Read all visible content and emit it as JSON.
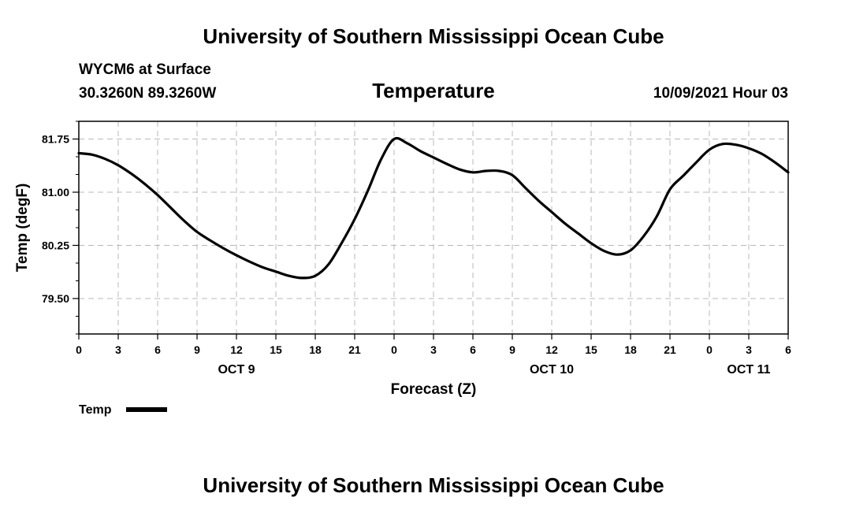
{
  "header": {
    "banner_top": "University of Southern Mississippi Ocean Cube",
    "banner_bottom": "University of Southern Mississippi Ocean Cube",
    "station": "WYCM6 at Surface",
    "coords": "30.3260N  89.3260W",
    "datetime": "10/09/2021 Hour 03"
  },
  "chart_data": {
    "type": "line",
    "title": "Temperature",
    "xlabel": "Forecast (Z)",
    "ylabel": "Temp (degF)",
    "xlim": [
      0,
      54
    ],
    "ylim": [
      79.0,
      82.0
    ],
    "x_ticks": [
      0,
      3,
      6,
      9,
      12,
      15,
      18,
      21,
      24,
      27,
      30,
      33,
      36,
      39,
      42,
      45,
      48,
      51,
      54
    ],
    "x_tick_labels": [
      "0",
      "3",
      "6",
      "9",
      "12",
      "15",
      "18",
      "21",
      "0",
      "3",
      "6",
      "9",
      "12",
      "15",
      "18",
      "21",
      "0",
      "3",
      "6"
    ],
    "y_ticks": [
      79.5,
      80.25,
      81.0,
      81.75
    ],
    "y_tick_labels": [
      "79.50",
      "80.25",
      "81.00",
      "81.75"
    ],
    "day_labels": [
      {
        "label": "OCT 9",
        "x": 12
      },
      {
        "label": "OCT 10",
        "x": 36
      },
      {
        "label": "OCT 11",
        "x": 51
      }
    ],
    "grid": true,
    "legend_placement": "bottom-left",
    "series": [
      {
        "name": "Temp",
        "color": "#000000",
        "x": [
          0,
          1,
          2,
          3,
          4,
          5,
          6,
          7,
          8,
          9,
          10,
          11,
          12,
          13,
          14,
          15,
          16,
          17,
          18,
          19,
          20,
          21,
          22,
          23,
          24,
          25,
          26,
          27,
          28,
          29,
          30,
          31,
          32,
          33,
          34,
          35,
          36,
          37,
          38,
          39,
          40,
          41,
          42,
          43,
          44,
          45,
          46,
          47,
          48,
          49,
          50,
          51,
          52,
          53,
          54
        ],
        "y": [
          81.55,
          81.53,
          81.47,
          81.38,
          81.26,
          81.12,
          80.96,
          80.78,
          80.6,
          80.44,
          80.32,
          80.21,
          80.11,
          80.02,
          79.94,
          79.88,
          79.82,
          79.79,
          79.82,
          79.98,
          80.28,
          80.62,
          81.02,
          81.46,
          81.75,
          81.69,
          81.58,
          81.49,
          81.4,
          81.32,
          81.28,
          81.3,
          81.3,
          81.24,
          81.06,
          80.88,
          80.72,
          80.56,
          80.42,
          80.28,
          80.17,
          80.12,
          80.18,
          80.38,
          80.66,
          81.04,
          81.23,
          81.42,
          81.6,
          81.68,
          81.67,
          81.62,
          81.54,
          81.42,
          81.28
        ]
      }
    ]
  }
}
